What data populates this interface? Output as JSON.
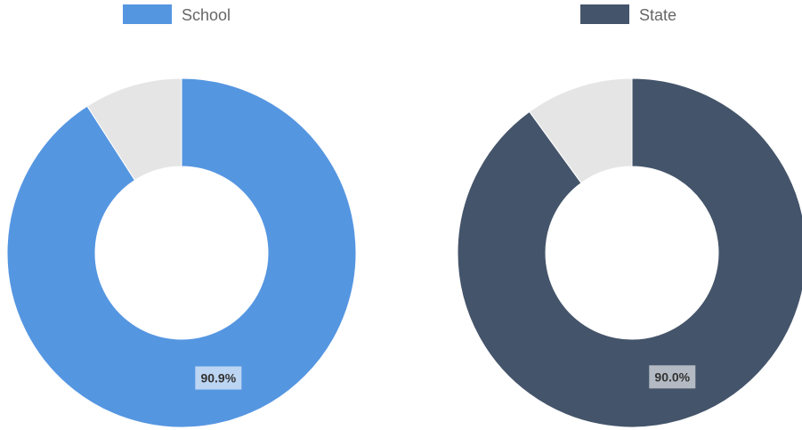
{
  "chart_data": [
    {
      "type": "pie",
      "variant": "doughnut",
      "legend": {
        "position": "top",
        "entries": [
          "School"
        ]
      },
      "series": [
        {
          "name": "School",
          "value": 90.9,
          "color": "#5596e1",
          "label": "90.9%"
        }
      ],
      "remainder": {
        "value": 9.1,
        "color": "#e5e5e5"
      }
    },
    {
      "type": "pie",
      "variant": "doughnut",
      "legend": {
        "position": "top",
        "entries": [
          "State"
        ]
      },
      "series": [
        {
          "name": "State",
          "value": 90.0,
          "color": "#44546a",
          "label": "90.0%"
        }
      ],
      "remainder": {
        "value": 10.0,
        "color": "#e5e5e5"
      }
    }
  ]
}
